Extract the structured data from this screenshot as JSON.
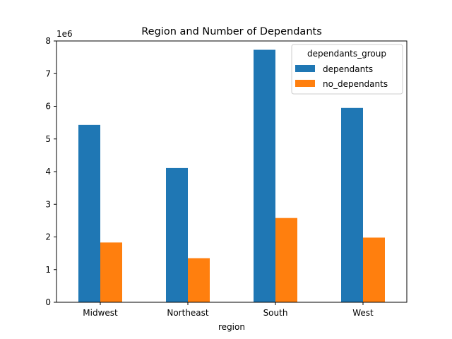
{
  "chart_data": {
    "type": "bar",
    "title": "Region and Number of Dependants",
    "xlabel": "region",
    "ylabel": "",
    "y_scale_label": "1e6",
    "categories": [
      "Midwest",
      "Northeast",
      "South",
      "West"
    ],
    "series": [
      {
        "name": "dependants",
        "color": "#1f77b4",
        "values": [
          5430000,
          4110000,
          7730000,
          5950000
        ]
      },
      {
        "name": "no_dependants",
        "color": "#ff7f0e",
        "values": [
          1830000,
          1350000,
          2580000,
          1980000
        ]
      }
    ],
    "ylim": [
      0,
      8000000
    ],
    "yticks": [
      0,
      1000000,
      2000000,
      3000000,
      4000000,
      5000000,
      6000000,
      7000000,
      8000000
    ],
    "ytick_labels": [
      "0",
      "1",
      "2",
      "3",
      "4",
      "5",
      "6",
      "7",
      "8"
    ],
    "legend": {
      "title": "dependants_group",
      "position": "top-right"
    },
    "grid": false
  }
}
